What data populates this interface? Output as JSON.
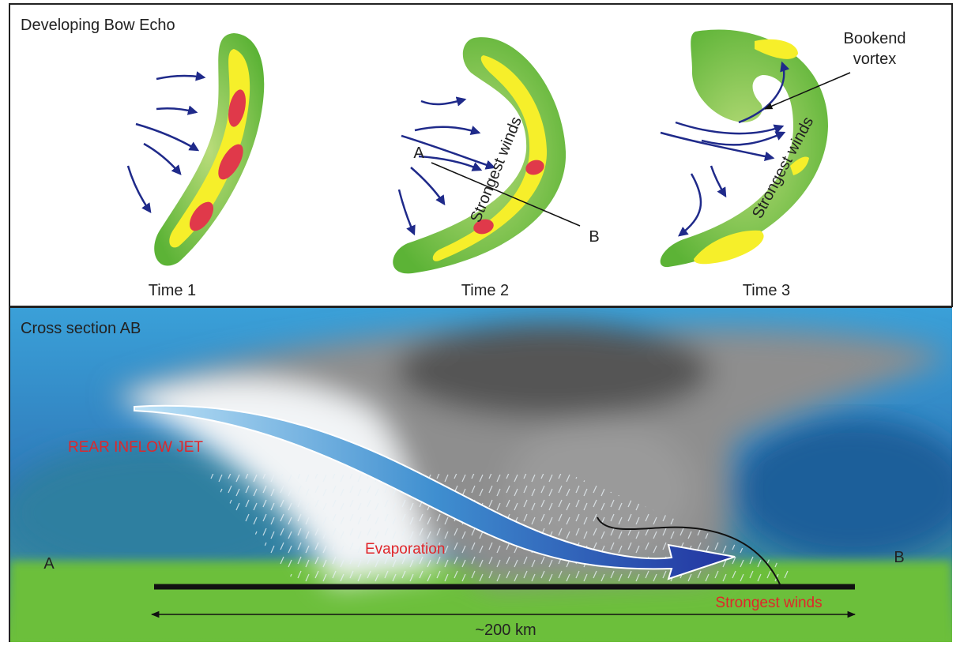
{
  "top_panel": {
    "title": "Developing Bow Echo",
    "stages": [
      {
        "label": "Time 1"
      },
      {
        "label": "Time 2",
        "annotation": "Strongest winds",
        "point_a": "A",
        "point_b": "B"
      },
      {
        "label": "Time 3",
        "annotation": "Strongest winds",
        "callout": [
          "Bookend",
          "vortex"
        ]
      }
    ]
  },
  "bottom_panel": {
    "title": "Cross section AB",
    "jet_label": "REAR INFLOW JET",
    "evaporation_label": "Evaporation",
    "point_a": "A",
    "point_b": "B",
    "winds_label": "Strongest winds",
    "distance_label": "~200 km"
  }
}
